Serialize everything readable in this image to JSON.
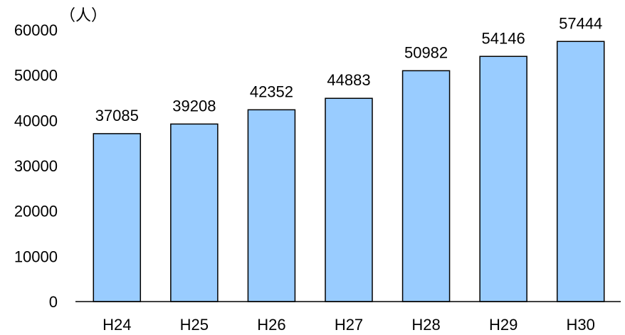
{
  "chart_data": {
    "type": "bar",
    "unit_label": "（人）",
    "categories": [
      "H24",
      "H25",
      "H26",
      "H27",
      "H28",
      "H29",
      "H30"
    ],
    "values": [
      37085,
      39208,
      42352,
      44883,
      50982,
      54146,
      57444
    ],
    "data_labels": [
      "37085",
      "39208",
      "42352",
      "44883",
      "50982",
      "54146",
      "57444"
    ],
    "ylim": [
      0,
      60000
    ],
    "yticks": [
      0,
      10000,
      20000,
      30000,
      40000,
      50000,
      60000
    ],
    "ytick_labels": [
      "0",
      "10000",
      "20000",
      "30000",
      "40000",
      "50000",
      "60000"
    ],
    "grid": false,
    "legend": "none",
    "colors": {
      "bar_fill": "#99CCFF",
      "bar_stroke": "#000000",
      "axis": "#000000"
    }
  }
}
